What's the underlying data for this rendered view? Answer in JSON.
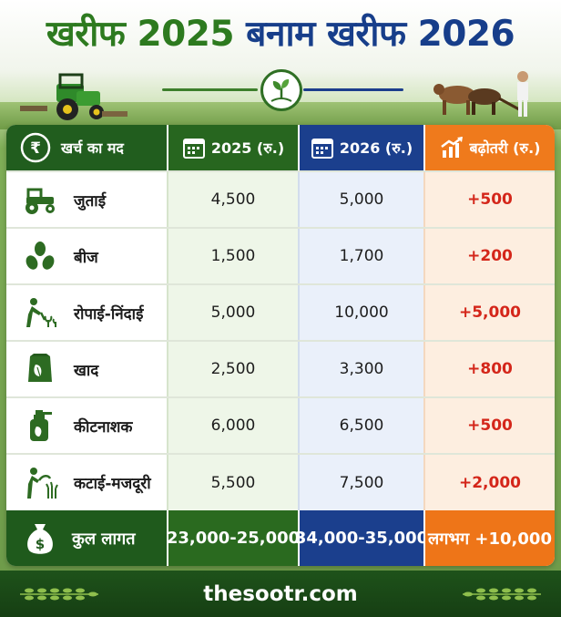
{
  "title": {
    "part1": "खरीफ 2025",
    "mid": "बनाम",
    "part2": "खरीफ 2026"
  },
  "table": {
    "headers": {
      "item": "खर्च का मद",
      "y2025": "2025 (रु.)",
      "y2026": "2026 (रु.)",
      "increase": "बढ़ोतरी (रु.)"
    },
    "rows": [
      {
        "icon": "tractor-icon",
        "item": "जुताई",
        "y2025": "4,500",
        "y2026": "5,000",
        "increase": "+500"
      },
      {
        "icon": "seeds-icon",
        "item": "बीज",
        "y2025": "1,500",
        "y2026": "1,700",
        "increase": "+200"
      },
      {
        "icon": "farmer-planting-icon",
        "item": "रोपाई-निंदाई",
        "y2025": "5,000",
        "y2026": "10,000",
        "increase": "+5,000"
      },
      {
        "icon": "fertilizer-bag-icon",
        "item": "खाद",
        "y2025": "2,500",
        "y2026": "3,300",
        "increase": "+800"
      },
      {
        "icon": "pesticide-sprayer-icon",
        "item": "कीटनाशक",
        "y2025": "6,000",
        "y2026": "6,500",
        "increase": "+500"
      },
      {
        "icon": "harvest-sickle-icon",
        "item": "कटाई-मजदूरी",
        "y2025": "5,500",
        "y2026": "7,500",
        "increase": "+2,000"
      }
    ],
    "total": {
      "icon": "money-bag-icon",
      "label": "कुल लागत",
      "y2025": "23,000-25,000",
      "y2026": "34,000-35,000",
      "increase": "लगभग +10,000"
    }
  },
  "footer": {
    "site": "thesootr.com"
  },
  "colors": {
    "green": "#215d1e",
    "blue": "#1b3f8d",
    "orange": "#ef7a1c",
    "red": "#d4261a"
  }
}
